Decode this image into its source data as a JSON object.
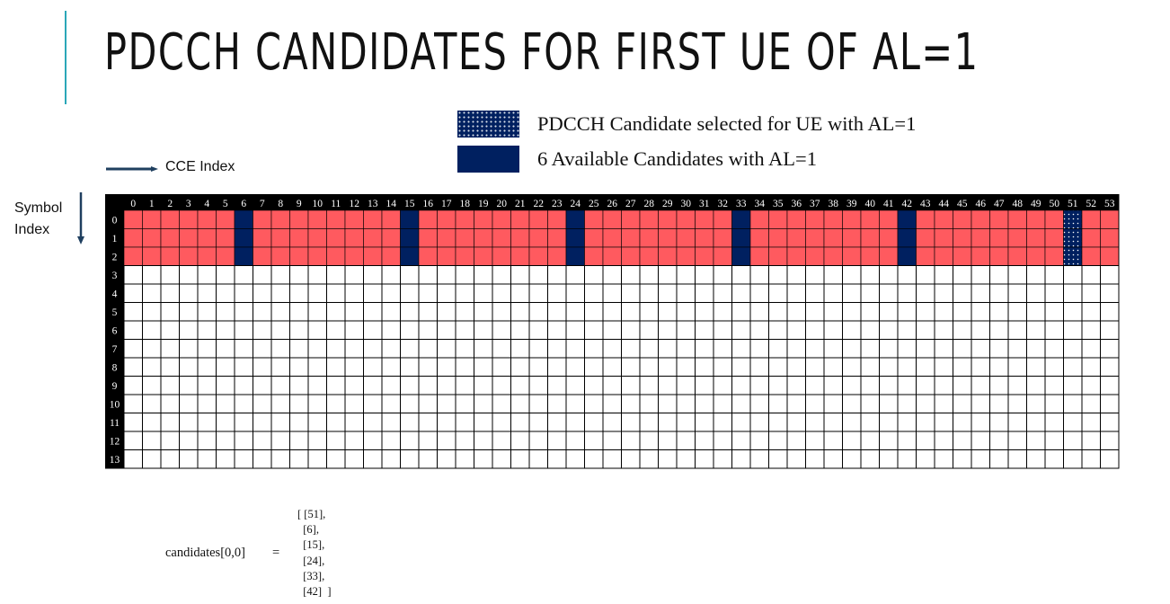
{
  "title": "PDCCH CANDIDATES FOR FIRST UE OF AL=1",
  "legend": [
    {
      "label": "PDCCH Candidate selected for UE with AL=1",
      "style": "dotted"
    },
    {
      "label": "6 Available Candidates with AL=1",
      "style": "solid"
    }
  ],
  "axis": {
    "cce_label": "CCE Index",
    "symbol_label_line1": "Symbol",
    "symbol_label_line2": "Index"
  },
  "grid": {
    "cce_count": 54,
    "symbol_count": 14,
    "coreset_symbols": 3,
    "available_candidates": [
      6,
      15,
      24,
      33,
      42,
      51
    ],
    "selected_candidate": 51
  },
  "colors": {
    "coreset": "#ff5a5f",
    "candidate": "#002060",
    "header": "#000000",
    "accent": "#2aa7b8"
  },
  "candidates": {
    "name": "candidates[0,0]",
    "equals": "=",
    "lines": [
      "[ [51],",
      "  [6],",
      "  [15],",
      "  [24],",
      "  [33],",
      "  [42]  ]"
    ]
  }
}
